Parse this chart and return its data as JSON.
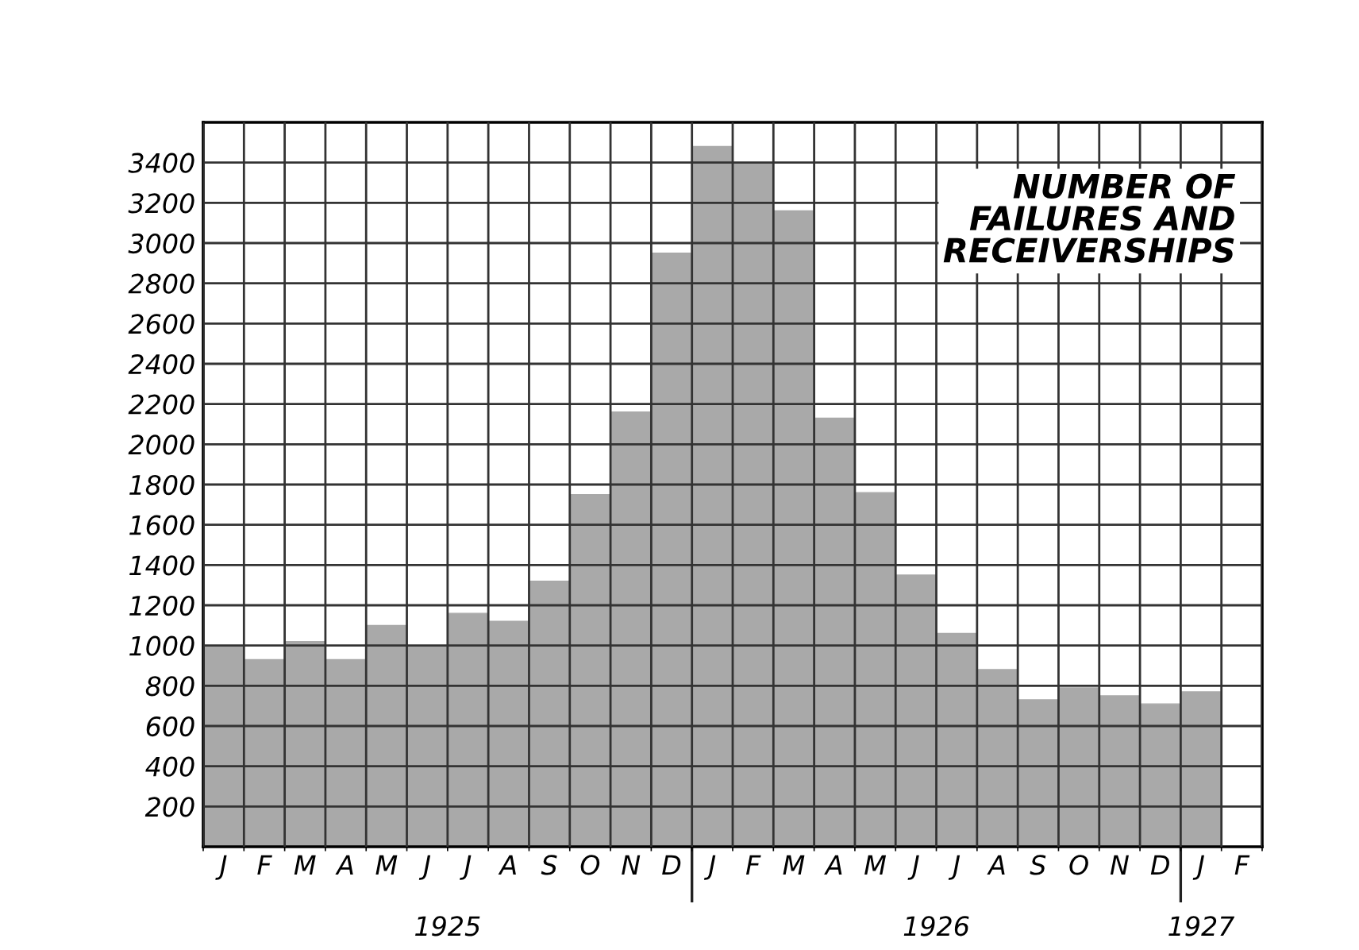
{
  "chart_data": {
    "type": "bar",
    "title": "NUMBER OF\nFAILURES AND\nRECEIVERSHIPS",
    "categories": [
      "J",
      "F",
      "M",
      "A",
      "M",
      "J",
      "J",
      "A",
      "S",
      "O",
      "N",
      "D",
      "J",
      "F",
      "M",
      "A",
      "M",
      "J",
      "J",
      "A",
      "S",
      "O",
      "N",
      "D",
      "J",
      "F"
    ],
    "values": [
      1000,
      930,
      1020,
      930,
      1100,
      1000,
      1160,
      1120,
      1320,
      1750,
      2160,
      2950,
      3480,
      3400,
      3160,
      2130,
      1760,
      1350,
      1060,
      880,
      730,
      790,
      750,
      710,
      770,
      null
    ],
    "color": "#a9a9a9",
    "ylim": [
      0,
      3600
    ],
    "yticks": [
      200,
      400,
      600,
      800,
      1000,
      1200,
      1400,
      1600,
      1800,
      2000,
      2200,
      2400,
      2600,
      2800,
      3000,
      3200,
      3400
    ],
    "grid": true,
    "annotations": [
      "1925",
      "1926",
      "1927"
    ]
  }
}
